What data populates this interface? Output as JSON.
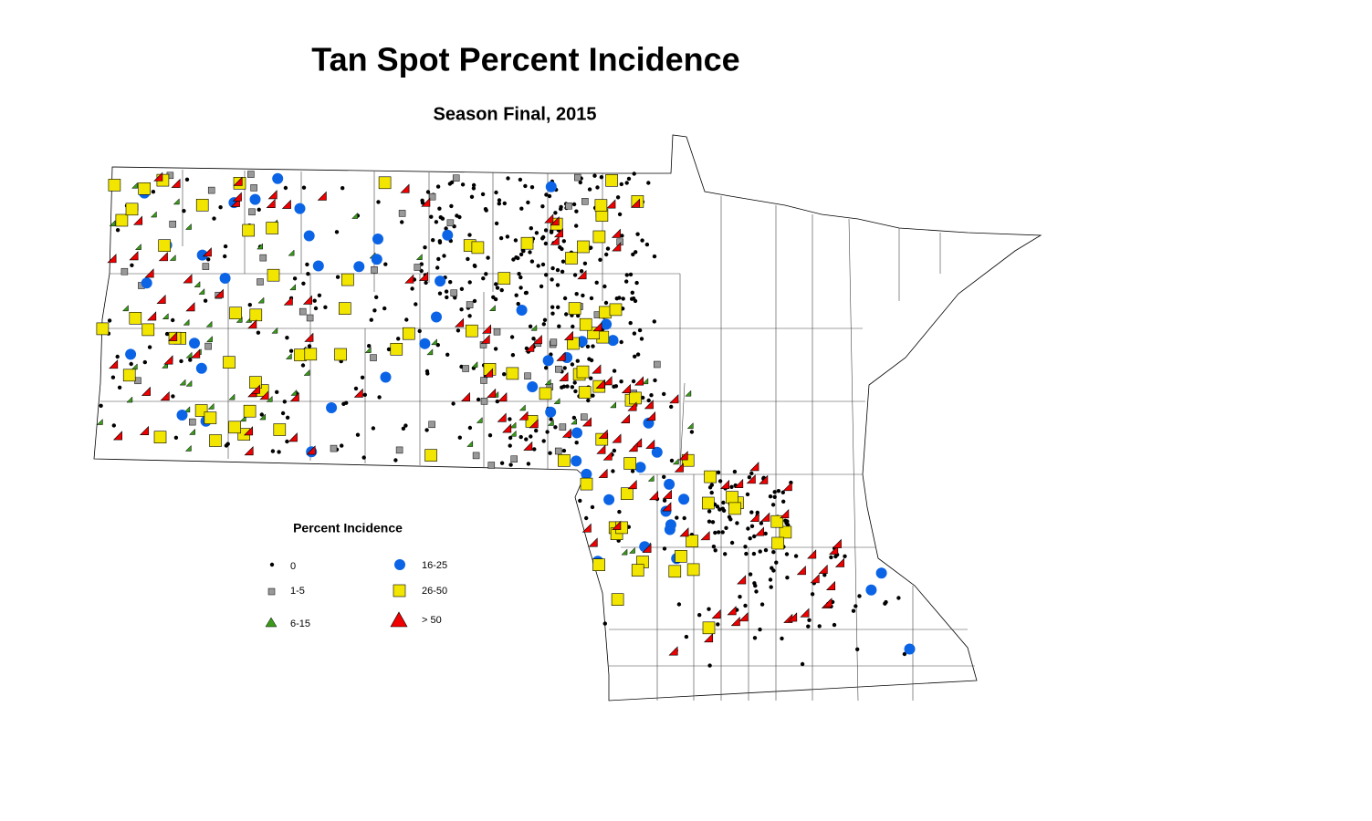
{
  "header": {
    "title": "Tan Spot Percent Incidence",
    "subtitle": "Season Final, 2015"
  },
  "legend": {
    "title": "Percent Incidence",
    "items": [
      {
        "label": "0"
      },
      {
        "label": "1-5"
      },
      {
        "label": "6-15"
      },
      {
        "label": "16-25"
      },
      {
        "label": "26-50"
      },
      {
        "label": "> 50"
      }
    ]
  }
}
